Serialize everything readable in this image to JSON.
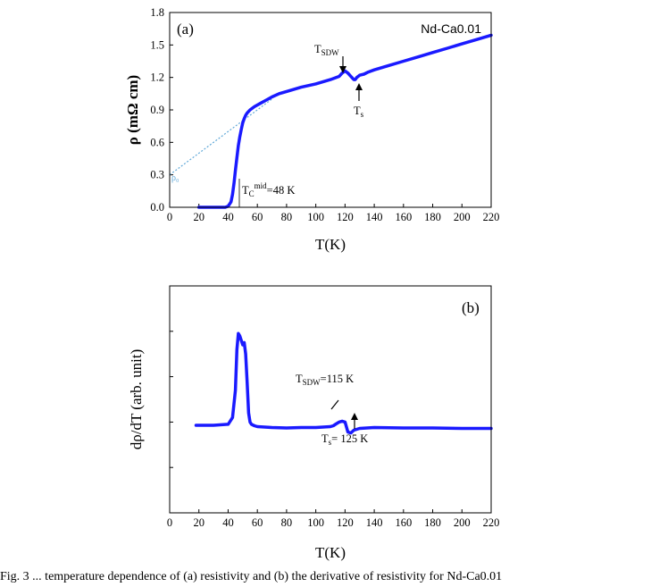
{
  "caption": "Fig. 3 ... temperature dependence of (a) resistivity and (b) the derivative of resistivity for Nd-Ca0.01",
  "chart_data": [
    {
      "type": "line",
      "panel_label": "(a)",
      "xlabel": "T(K)",
      "ylabel": "ρ (mΩ cm)",
      "xlim": [
        0,
        220
      ],
      "ylim": [
        0,
        1.8
      ],
      "xticks": [
        "0",
        "20",
        "40",
        "60",
        "80",
        "100",
        "120",
        "140",
        "160",
        "180",
        "200",
        "220"
      ],
      "yticks": [
        "0.0",
        "0.3",
        "0.6",
        "0.9",
        "1.2",
        "1.5",
        "1.8"
      ],
      "legend": "Nd-Ca0.01",
      "color": "#1a1aff",
      "fit_color": "#5fa8d8",
      "series": [
        {
          "x": [
            20,
            38,
            40,
            42,
            43,
            44,
            45,
            46,
            47,
            48,
            49,
            50,
            51,
            52,
            53,
            55,
            58,
            62,
            66,
            70,
            75,
            80,
            90,
            100,
            110,
            116,
            118,
            120,
            122,
            124,
            126,
            127,
            128,
            130,
            133,
            136,
            140,
            150,
            160,
            170,
            180,
            190,
            200,
            210,
            220
          ],
          "y": [
            0.0,
            0.0,
            0.01,
            0.05,
            0.12,
            0.22,
            0.34,
            0.46,
            0.57,
            0.65,
            0.72,
            0.78,
            0.82,
            0.85,
            0.87,
            0.9,
            0.93,
            0.96,
            0.99,
            1.02,
            1.05,
            1.07,
            1.11,
            1.14,
            1.18,
            1.21,
            1.24,
            1.26,
            1.24,
            1.21,
            1.18,
            1.18,
            1.2,
            1.22,
            1.23,
            1.25,
            1.27,
            1.31,
            1.35,
            1.39,
            1.43,
            1.47,
            1.51,
            1.55,
            1.59
          ]
        }
      ],
      "fit_line": {
        "x": [
          0,
          70
        ],
        "y": [
          0.3,
          1.0
        ]
      },
      "annotations": {
        "rho0": "ρ₀",
        "tc_main": "T",
        "tc_sub": "C",
        "tc_sup": "mid",
        "tc_rest": "=48 K",
        "tsdw_main": "T",
        "tsdw_sub": "SDW",
        "ts_main": "T",
        "ts_sub": "s"
      }
    },
    {
      "type": "line",
      "panel_label": "(b)",
      "xlabel": "T(K)",
      "ylabel": "dρ/dT (arb. unit)",
      "xlim": [
        0,
        220
      ],
      "ylim": [
        0,
        5
      ],
      "xticks": [
        "0",
        "20",
        "40",
        "60",
        "80",
        "100",
        "120",
        "140",
        "160",
        "180",
        "200",
        "220"
      ],
      "color": "#1a1aff",
      "series": [
        {
          "x": [
            18,
            30,
            40,
            43,
            45,
            46,
            47,
            48,
            49,
            50,
            51,
            52,
            53,
            54,
            55,
            56,
            58,
            60,
            70,
            80,
            90,
            100,
            110,
            112,
            114,
            116,
            118,
            120,
            122,
            124,
            126,
            130,
            140,
            160,
            180,
            200,
            220
          ],
          "y": [
            1.93,
            1.93,
            1.95,
            2.1,
            2.7,
            3.6,
            3.95,
            3.9,
            3.8,
            3.7,
            3.75,
            3.5,
            2.9,
            2.2,
            2.0,
            1.95,
            1.92,
            1.9,
            1.88,
            1.87,
            1.88,
            1.88,
            1.9,
            1.92,
            1.96,
            2.0,
            2.02,
            2.0,
            1.78,
            1.76,
            1.82,
            1.86,
            1.88,
            1.87,
            1.87,
            1.86,
            1.86
          ]
        }
      ],
      "annotations": {
        "tsdw_main": "T",
        "tsdw_sub": "SDW",
        "tsdw_rest": "=115 K",
        "ts_main": "T",
        "ts_sub": "s",
        "ts_rest": "= 125 K"
      }
    }
  ]
}
